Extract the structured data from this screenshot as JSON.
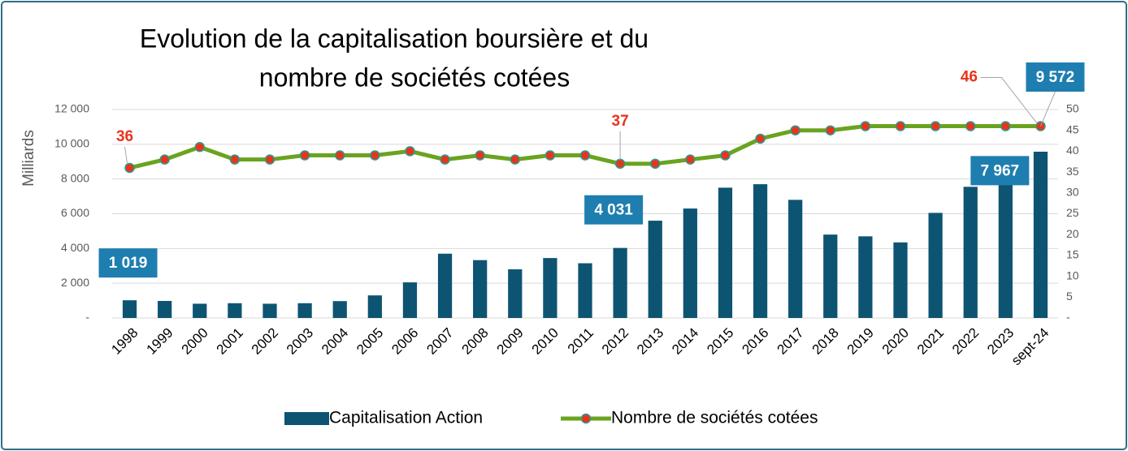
{
  "chart_data": {
    "type": "bar-line",
    "title": [
      "Evolution de la capitalisation boursière et du",
      "nombre de sociétés cotées"
    ],
    "y_label": "Milliards",
    "categories": [
      "1998",
      "1999",
      "2000",
      "2001",
      "2002",
      "2003",
      "2004",
      "2005",
      "2006",
      "2007",
      "2008",
      "2009",
      "2010",
      "2011",
      "2012",
      "2013",
      "2014",
      "2015",
      "2016",
      "2017",
      "2018",
      "2019",
      "2020",
      "2021",
      "2022",
      "2023",
      "sept-24"
    ],
    "series": [
      {
        "name": "Capitalisation Action",
        "type": "bar",
        "color": "#0d5473",
        "values": [
          1019,
          980,
          820,
          850,
          820,
          850,
          970,
          1300,
          2050,
          3700,
          3330,
          2800,
          3450,
          3150,
          4031,
          5600,
          6300,
          7500,
          7700,
          6800,
          4800,
          4700,
          4350,
          6050,
          7550,
          7967,
          9572
        ],
        "value_labels": [
          "1 019",
          null,
          null,
          null,
          null,
          null,
          null,
          null,
          null,
          null,
          null,
          null,
          null,
          null,
          "4 031",
          null,
          null,
          null,
          null,
          null,
          null,
          null,
          null,
          null,
          null,
          "7 967",
          "9 572"
        ]
      },
      {
        "name": "Nombre de sociétés cotées",
        "type": "line",
        "axis": "y2",
        "color": "#6aa31f",
        "marker_color": "#e8341c",
        "values": [
          36,
          38,
          41,
          38,
          38,
          39,
          39,
          39,
          40,
          38,
          39,
          38,
          39,
          39,
          37,
          37,
          38,
          39,
          43,
          45,
          45,
          46,
          46,
          46,
          46,
          46,
          46
        ],
        "value_labels": [
          "36",
          null,
          null,
          null,
          null,
          null,
          null,
          null,
          null,
          null,
          null,
          null,
          null,
          null,
          "37",
          null,
          null,
          null,
          null,
          null,
          null,
          null,
          null,
          null,
          null,
          null,
          "46"
        ]
      }
    ],
    "ylim": [
      0,
      12000
    ],
    "yticks": [
      {
        "value": 0,
        "label": "-"
      },
      {
        "value": 2000,
        "label": "2 000"
      },
      {
        "value": 4000,
        "label": "4 000"
      },
      {
        "value": 6000,
        "label": "6 000"
      },
      {
        "value": 8000,
        "label": "8 000"
      },
      {
        "value": 10000,
        "label": "10 000"
      },
      {
        "value": 12000,
        "label": "12 000"
      }
    ],
    "y2lim": [
      0,
      50
    ],
    "y2ticks": [
      {
        "value": 0,
        "label": "-"
      },
      5,
      10,
      15,
      20,
      25,
      30,
      35,
      40,
      45,
      50
    ],
    "grid": true,
    "legend": "bottom"
  }
}
